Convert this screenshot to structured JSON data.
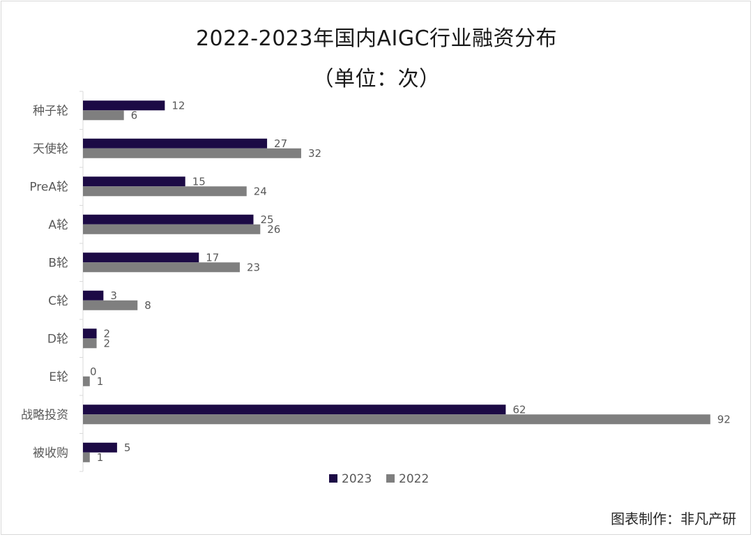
{
  "title": "2022-2023年国内AIGC行业融资分布",
  "subtitle": "（单位：次）",
  "credit": "图表制作：非凡产研",
  "colors": {
    "series_2023": "#1c0a45",
    "series_2022": "#7f7f7f",
    "axis": "#d9d9d9"
  },
  "chart_data": {
    "type": "bar",
    "orientation": "horizontal",
    "categories": [
      "种子轮",
      "天使轮",
      "PreA轮",
      "A轮",
      "B轮",
      "C轮",
      "D轮",
      "E轮",
      "战略投资",
      "被收购"
    ],
    "series": [
      {
        "name": "2023",
        "values": [
          12,
          27,
          15,
          25,
          17,
          3,
          2,
          0,
          62,
          5
        ]
      },
      {
        "name": "2022",
        "values": [
          6,
          32,
          24,
          26,
          23,
          8,
          2,
          1,
          92,
          1
        ]
      }
    ],
    "title": "2022-2023年国内AIGC行业融资分布",
    "subtitle": "（单位：次）",
    "xlabel": "",
    "ylabel": "",
    "xlim": [
      0,
      92
    ],
    "data_labels": true,
    "grid": false,
    "legend": "bottom"
  }
}
